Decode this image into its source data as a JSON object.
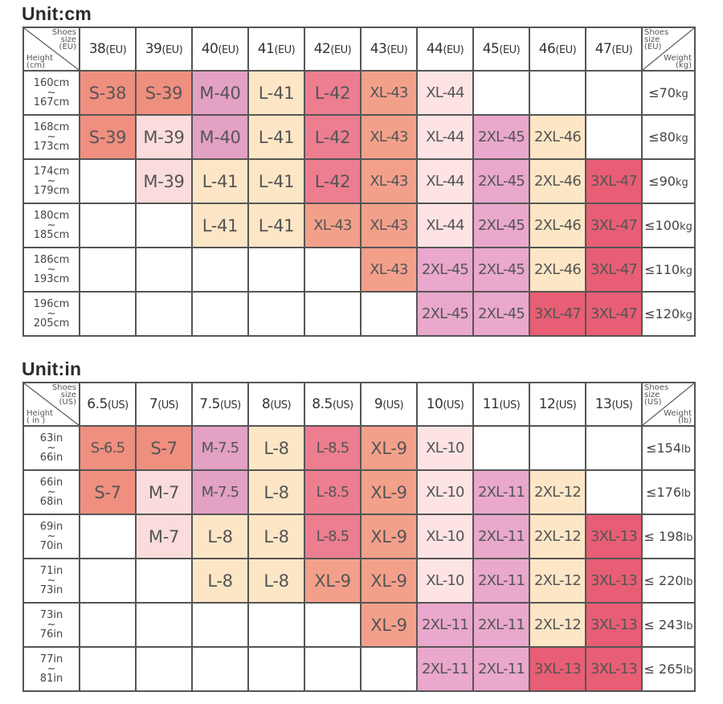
{
  "cm": {
    "title": "Unit:cm",
    "corner": {
      "top": [
        "Shoes",
        "size",
        "(EU)"
      ],
      "bottom": [
        "Height",
        "(cm)"
      ]
    },
    "corner_right": {
      "top": [
        "Shoes",
        "size",
        "(EU)"
      ],
      "bottom": [
        "Weight",
        "(kg)"
      ]
    },
    "columns": [
      {
        "num": "38",
        "unit": "(EU)"
      },
      {
        "num": "39",
        "unit": "(EU)"
      },
      {
        "num": "40",
        "unit": "(EU)"
      },
      {
        "num": "41",
        "unit": "(EU)"
      },
      {
        "num": "42",
        "unit": "(EU)"
      },
      {
        "num": "43",
        "unit": "(EU)"
      },
      {
        "num": "44",
        "unit": "(EU)"
      },
      {
        "num": "45",
        "unit": "(EU)"
      },
      {
        "num": "46",
        "unit": "(EU)"
      },
      {
        "num": "47",
        "unit": "(EU)"
      }
    ],
    "rows": [
      {
        "h1": "160cm",
        "tilde": "~",
        "h2": "167cm",
        "w": "≤70",
        "wu": "kg",
        "cells": [
          "S-38",
          "S-39",
          "M-40",
          "L-41",
          "L-42",
          "XL-43",
          "XL-44",
          "",
          "",
          ""
        ]
      },
      {
        "h1": "168cm",
        "tilde": "~",
        "h2": "173cm",
        "w": "≤80",
        "wu": "kg",
        "cells": [
          "S-39",
          "M-39",
          "M-40",
          "L-41",
          "L-42",
          "XL-43",
          "XL-44",
          "2XL-45",
          "2XL-46",
          ""
        ]
      },
      {
        "h1": "174cm",
        "tilde": "~",
        "h2": "179cm",
        "w": "≤90",
        "wu": "kg",
        "cells": [
          "",
          "M-39",
          "L-41",
          "L-41",
          "L-42",
          "XL-43",
          "XL-44",
          "2XL-45",
          "2XL-46",
          "3XL-47"
        ]
      },
      {
        "h1": "180cm",
        "tilde": "~",
        "h2": "185cm",
        "w": "≤100",
        "wu": "kg",
        "cells": [
          "",
          "",
          "L-41",
          "L-41",
          "XL-43",
          "XL-43",
          "XL-44",
          "2XL-45",
          "2XL-46",
          "3XL-47"
        ]
      },
      {
        "h1": "186cm",
        "tilde": "~",
        "h2": "193cm",
        "w": "≤110",
        "wu": "kg",
        "cells": [
          "",
          "",
          "",
          "",
          "",
          "XL-43",
          "2XL-45",
          "2XL-45",
          "2XL-46",
          "3XL-47"
        ]
      },
      {
        "h1": "196cm",
        "tilde": "~",
        "h2": "205cm",
        "w": "≤120",
        "wu": "kg",
        "cells": [
          "",
          "",
          "",
          "",
          "",
          "",
          "2XL-45",
          "2XL-45",
          "3XL-47",
          "3XL-47"
        ]
      }
    ]
  },
  "in": {
    "title": "Unit:in",
    "corner": {
      "top": [
        "Shoes",
        "size",
        "(US)"
      ],
      "bottom": [
        "Height",
        "( in )"
      ]
    },
    "corner_right": {
      "top": [
        "Shoes",
        "size",
        "(US)"
      ],
      "bottom": [
        "Weight",
        "(lb)"
      ]
    },
    "columns": [
      {
        "num": "6.5",
        "unit": "(US)"
      },
      {
        "num": "7",
        "unit": "(US)"
      },
      {
        "num": "7.5",
        "unit": "(US)"
      },
      {
        "num": "8",
        "unit": "(US)"
      },
      {
        "num": "8.5",
        "unit": "(US)"
      },
      {
        "num": "9",
        "unit": "(US)"
      },
      {
        "num": "10",
        "unit": "(US)"
      },
      {
        "num": "11",
        "unit": "(US)"
      },
      {
        "num": "12",
        "unit": "(US)"
      },
      {
        "num": "13",
        "unit": "(US)"
      }
    ],
    "rows": [
      {
        "h1": "63in",
        "tilde": "~",
        "h2": "66in",
        "w": "≤154",
        "wu": "lb",
        "cells": [
          "S-6.5",
          "S-7",
          "M-7.5",
          "L-8",
          "L-8.5",
          "XL-9",
          "XL-10",
          "",
          "",
          ""
        ]
      },
      {
        "h1": "66in",
        "tilde": "~",
        "h2": "68in",
        "w": "≤176",
        "wu": "lb",
        "cells": [
          "S-7",
          "M-7",
          "M-7.5",
          "L-8",
          "L-8.5",
          "XL-9",
          "XL-10",
          "2XL-11",
          "2XL-12",
          ""
        ]
      },
      {
        "h1": "69in",
        "tilde": "~",
        "h2": "70in",
        "w": "≤ 198",
        "wu": "lb",
        "cells": [
          "",
          "M-7",
          "L-8",
          "L-8",
          "L-8.5",
          "XL-9",
          "XL-10",
          "2XL-11",
          "2XL-12",
          "3XL-13"
        ]
      },
      {
        "h1": "71in",
        "tilde": "~",
        "h2": "73in",
        "w": "≤ 220",
        "wu": "lb",
        "cells": [
          "",
          "",
          "L-8",
          "L-8",
          "XL-9",
          "XL-9",
          "XL-10",
          "2XL-11",
          "2XL-12",
          "3XL-13"
        ]
      },
      {
        "h1": "73in",
        "tilde": "~",
        "h2": "76in",
        "w": "≤ 243",
        "wu": "lb",
        "cells": [
          "",
          "",
          "",
          "",
          "",
          "XL-9",
          "2XL-11",
          "2XL-11",
          "2XL-12",
          "3XL-13"
        ]
      },
      {
        "h1": "77in",
        "tilde": "~",
        "h2": "81in",
        "w": "≤ 265",
        "wu": "lb",
        "cells": [
          "",
          "",
          "",
          "",
          "",
          "",
          "2XL-11",
          "2XL-11",
          "3XL-13",
          "3XL-13"
        ]
      }
    ]
  },
  "colors": {
    "S": "#ef8f7f",
    "M-40": "#e3a1c4",
    "M-39": "#fbdcdc",
    "L-41": "#fce6c5",
    "L-42": "#ec7e90",
    "XL": "#f3a08b",
    "XL-44": "#fde3e4",
    "2XL": "#e9a8cc",
    "2XL-46": "#fce6c5",
    "3XL": "#e85e74"
  }
}
